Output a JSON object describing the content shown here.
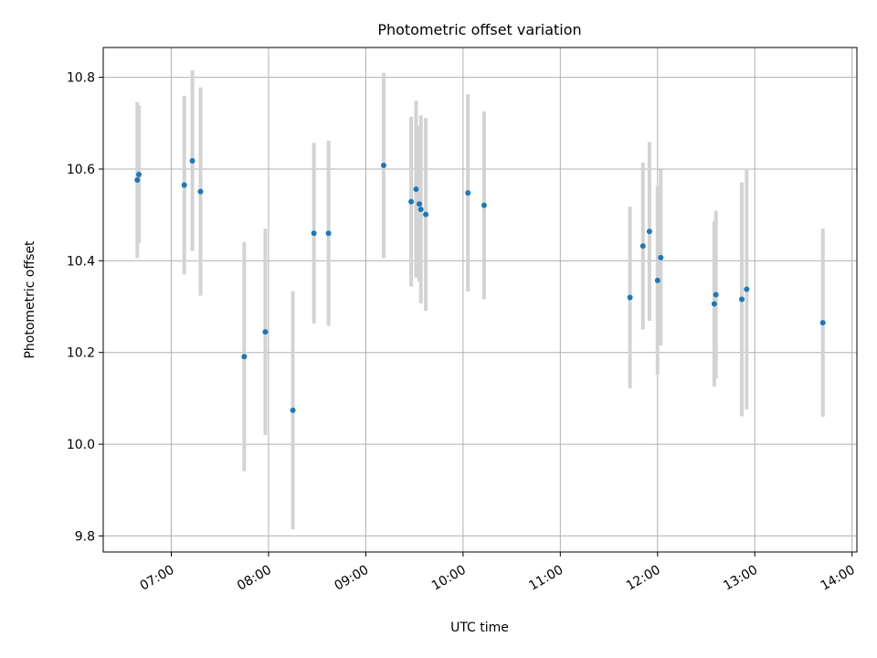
{
  "chart_data": {
    "type": "scatter",
    "title": "Photometric offset variation",
    "xlabel": "UTC time",
    "ylabel": "Photometric offset",
    "grid": true,
    "xlim": [
      "06:18",
      "14:03"
    ],
    "ylim": [
      9.765,
      10.865
    ],
    "x_ticks": [
      "07:00",
      "08:00",
      "09:00",
      "10:00",
      "11:00",
      "12:00",
      "13:00",
      "14:00"
    ],
    "y_ticks": [
      9.8,
      10.0,
      10.2,
      10.4,
      10.6,
      10.8
    ],
    "y_tick_labels": [
      "9.8",
      "10.0",
      "10.2",
      "10.4",
      "10.6",
      "10.8"
    ],
    "colors": {
      "points": "#1f77b4",
      "error_bars": "#d3d3d3",
      "grid": "#b0b0b0"
    },
    "points": [
      {
        "x": "06:39",
        "y": 10.576,
        "err": 0.17
      },
      {
        "x": "06:40",
        "y": 10.588,
        "err": 0.15
      },
      {
        "x": "07:08",
        "y": 10.565,
        "err": 0.195
      },
      {
        "x": "07:13",
        "y": 10.618,
        "err": 0.197
      },
      {
        "x": "07:18",
        "y": 10.551,
        "err": 0.227
      },
      {
        "x": "07:45",
        "y": 10.191,
        "err": 0.25
      },
      {
        "x": "07:58",
        "y": 10.245,
        "err": 0.225
      },
      {
        "x": "08:15",
        "y": 10.074,
        "err": 0.26
      },
      {
        "x": "08:28",
        "y": 10.46,
        "err": 0.197
      },
      {
        "x": "08:37",
        "y": 10.46,
        "err": 0.202
      },
      {
        "x": "09:11",
        "y": 10.608,
        "err": 0.202
      },
      {
        "x": "09:28",
        "y": 10.529,
        "err": 0.185
      },
      {
        "x": "09:31",
        "y": 10.556,
        "err": 0.193
      },
      {
        "x": "09:33",
        "y": 10.524,
        "err": 0.17
      },
      {
        "x": "09:34",
        "y": 10.512,
        "err": 0.205
      },
      {
        "x": "09:37",
        "y": 10.501,
        "err": 0.21
      },
      {
        "x": "10:03",
        "y": 10.548,
        "err": 0.215
      },
      {
        "x": "10:13",
        "y": 10.521,
        "err": 0.205
      },
      {
        "x": "11:43",
        "y": 10.32,
        "err": 0.198
      },
      {
        "x": "11:51",
        "y": 10.432,
        "err": 0.182
      },
      {
        "x": "11:55",
        "y": 10.464,
        "err": 0.195
      },
      {
        "x": "12:00",
        "y": 10.357,
        "err": 0.205
      },
      {
        "x": "12:02",
        "y": 10.407,
        "err": 0.192
      },
      {
        "x": "12:35",
        "y": 10.306,
        "err": 0.18
      },
      {
        "x": "12:36",
        "y": 10.326,
        "err": 0.183
      },
      {
        "x": "12:52",
        "y": 10.316,
        "err": 0.255
      },
      {
        "x": "12:55",
        "y": 10.338,
        "err": 0.262
      },
      {
        "x": "13:42",
        "y": 10.265,
        "err": 0.205
      }
    ]
  }
}
